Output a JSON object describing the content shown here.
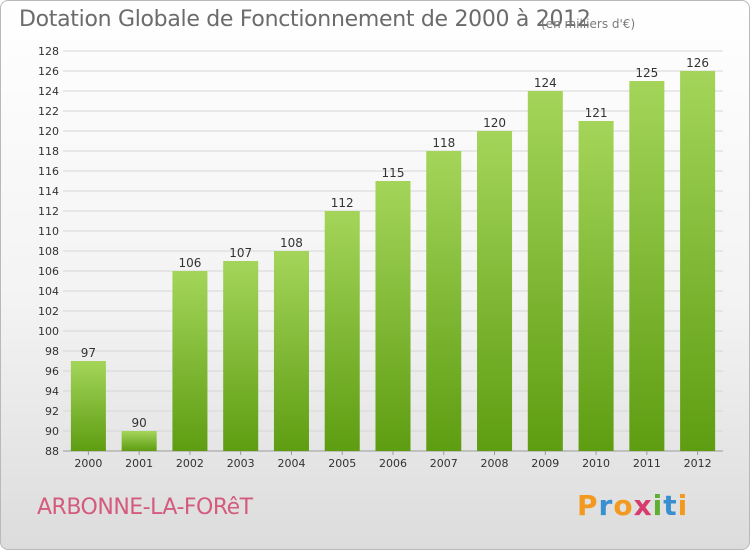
{
  "title": "Dotation Globale de Fonctionnement de 2000 à 2012",
  "unit_note": "(en milliers d'€)",
  "commune": "ARBONNE-LA-FORêT",
  "logo": {
    "letters": [
      "P",
      "r",
      "o",
      "x",
      "i",
      "t",
      "i"
    ],
    "colors": [
      "#f29a1f",
      "#3a8fd0",
      "#f29a1f",
      "#d83c6e",
      "#5fb030",
      "#3a8fd0",
      "#f29a1f"
    ]
  },
  "colors": {
    "bar_top": "#a4d55a",
    "bar_bottom": "#5e9d12",
    "grid": "#d6d6d6",
    "axis_text": "#333333"
  },
  "chart_data": {
    "type": "bar",
    "title": "Dotation Globale de Fonctionnement de 2000 à 2012",
    "subtitle": "(en milliers d'€)",
    "categories": [
      "2000",
      "2001",
      "2002",
      "2003",
      "2004",
      "2005",
      "2006",
      "2007",
      "2008",
      "2009",
      "2010",
      "2011",
      "2012"
    ],
    "values": [
      97,
      90,
      106,
      107,
      108,
      112,
      115,
      118,
      120,
      124,
      121,
      125,
      126
    ],
    "ylim": [
      88,
      128
    ],
    "yticks": [
      88,
      90,
      92,
      94,
      96,
      98,
      100,
      102,
      104,
      106,
      108,
      110,
      112,
      114,
      116,
      118,
      120,
      122,
      124,
      126,
      128
    ],
    "xlabel": "",
    "ylabel": "",
    "grid": true
  }
}
